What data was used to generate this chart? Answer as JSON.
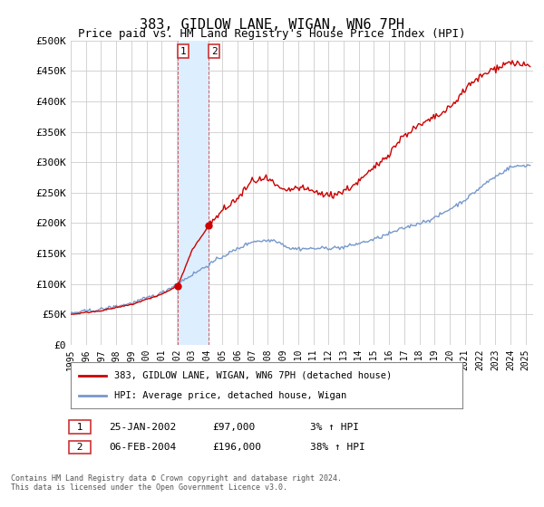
{
  "title": "383, GIDLOW LANE, WIGAN, WN6 7PH",
  "subtitle": "Price paid vs. HM Land Registry's House Price Index (HPI)",
  "ylabel_ticks": [
    "£0",
    "£50K",
    "£100K",
    "£150K",
    "£200K",
    "£250K",
    "£300K",
    "£350K",
    "£400K",
    "£450K",
    "£500K"
  ],
  "ytick_values": [
    0,
    50000,
    100000,
    150000,
    200000,
    250000,
    300000,
    350000,
    400000,
    450000,
    500000
  ],
  "ylim": [
    0,
    500000
  ],
  "xlim_start": 1995.0,
  "xlim_end": 2025.5,
  "background_color": "#ffffff",
  "plot_bg_color": "#ffffff",
  "grid_color": "#cccccc",
  "sale1_x": 2002.07,
  "sale1_y": 97000,
  "sale2_x": 2004.1,
  "sale2_y": 196000,
  "sale1_label": "1",
  "sale2_label": "2",
  "sale1_date": "25-JAN-2002",
  "sale1_price": "£97,000",
  "sale1_hpi": "3% ↑ HPI",
  "sale2_date": "06-FEB-2004",
  "sale2_price": "£196,000",
  "sale2_hpi": "38% ↑ HPI",
  "legend_line1": "383, GIDLOW LANE, WIGAN, WN6 7PH (detached house)",
  "legend_line2": "HPI: Average price, detached house, Wigan",
  "footer": "Contains HM Land Registry data © Crown copyright and database right 2024.\nThis data is licensed under the Open Government Licence v3.0.",
  "line_color_red": "#cc0000",
  "line_color_blue": "#7799cc",
  "highlight_box_color": "#ddeeff",
  "sale_dot_color": "#cc0000",
  "sale_label_border_color": "#cc3333"
}
